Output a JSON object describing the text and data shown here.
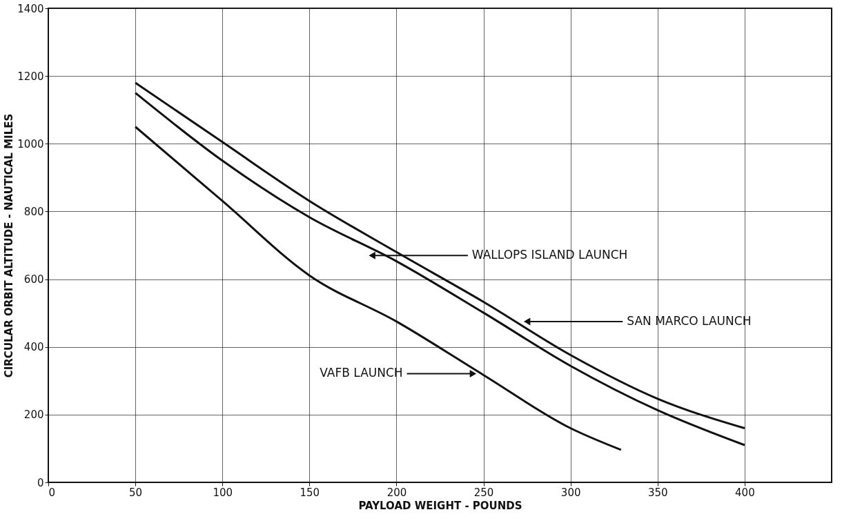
{
  "chart_data": {
    "type": "line",
    "xlabel": "PAYLOAD WEIGHT - POUNDS",
    "ylabel": "CIRCULAR ORBIT ALTITUDE - NAUTICAL MILES",
    "x": [
      50,
      100,
      150,
      200,
      250,
      300,
      350,
      400
    ],
    "series": [
      {
        "color": "#111111",
        "values": [
          1180,
          1005,
          831,
          680,
          533,
          376,
          247,
          160
        ]
      },
      {
        "color": "#111111",
        "values": [
          1150,
          950,
          783,
          653,
          501,
          344,
          213,
          110
        ]
      },
      {
        "color": "#111111",
        "x": [
          50,
          100,
          150,
          200,
          250,
          300,
          329
        ],
        "values": [
          1050,
          831,
          611,
          475,
          317,
          160,
          96
        ]
      }
    ],
    "annotations": [
      {
        "text": "WALLOPS ISLAND LAUNCH",
        "x": 186,
        "y": 670
      },
      {
        "text": "SAN MARCO LAUNCH",
        "x": 275,
        "y": 475
      },
      {
        "text": "VAFB LAUNCH",
        "x": 244,
        "y": 321
      }
    ],
    "xlim": [
      0,
      450
    ],
    "xticks": [
      0,
      50,
      100,
      150,
      200,
      250,
      300,
      350,
      400
    ],
    "ylim": [
      0,
      1400
    ],
    "yticks": [
      0,
      200,
      400,
      600,
      800,
      1000,
      1200,
      1400
    ],
    "grid": true,
    "marker": "none",
    "line_style": "solid"
  }
}
